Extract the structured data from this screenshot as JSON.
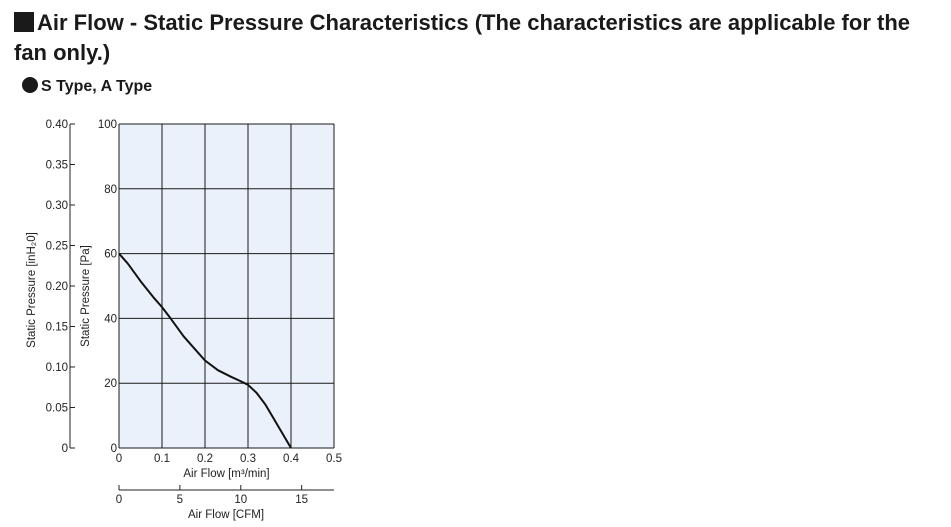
{
  "header": {
    "title": "Air Flow - Static Pressure Characteristics (The characteristics are applicable for the fan only.)",
    "subtitle": "S Type, A Type"
  },
  "colors": {
    "plot_background": "#eaf1fb",
    "grid": "#1a1a1a",
    "curve": "#111111"
  },
  "chart_data": {
    "type": "line",
    "title": "",
    "xlabel": "Air Flow [m³/min]",
    "ylabel": "Static Pressure [Pa]",
    "xlim": [
      0,
      0.5
    ],
    "ylim": [
      0,
      100
    ],
    "x_ticks": [
      "0",
      "0.1",
      "0.2",
      "0.3",
      "0.4",
      "0.5"
    ],
    "y_ticks": [
      "0",
      "20",
      "40",
      "60",
      "80",
      "100"
    ],
    "secondary_y": {
      "label": "Static Pressure [inH₂0]",
      "range": [
        0,
        0.4
      ],
      "ticks": [
        "0",
        "0.05",
        "0.10",
        "0.15",
        "0.20",
        "0.25",
        "0.30",
        "0.35",
        "0.40"
      ]
    },
    "secondary_x": {
      "label": "Air Flow [CFM]",
      "ticks": [
        "0",
        "5",
        "10",
        "15"
      ]
    },
    "grid": true,
    "series": [
      {
        "name": "",
        "x": [
          0,
          0.02,
          0.05,
          0.08,
          0.1,
          0.12,
          0.15,
          0.18,
          0.2,
          0.23,
          0.26,
          0.28,
          0.3,
          0.32,
          0.34,
          0.36,
          0.38,
          0.4
        ],
        "y": [
          60,
          57,
          51.5,
          46.5,
          43.5,
          40,
          34.5,
          30,
          27,
          24,
          22,
          20.8,
          19.5,
          17,
          13.5,
          9,
          4.5,
          0
        ]
      }
    ]
  }
}
